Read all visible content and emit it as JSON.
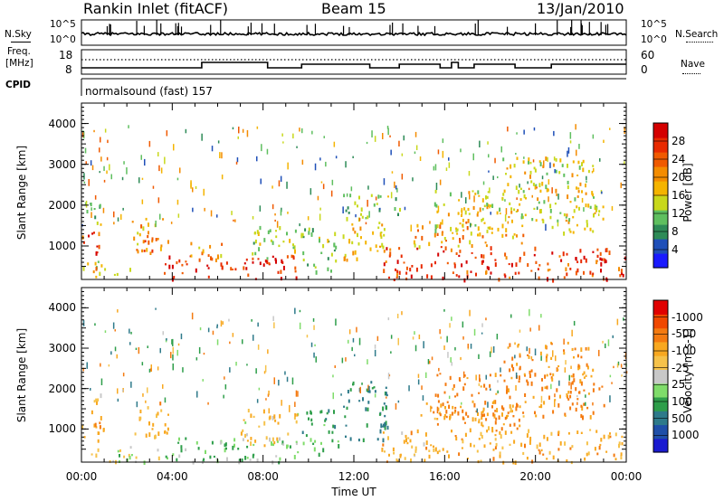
{
  "header": {
    "station": "Rankin Inlet (fitACF)",
    "beam": "Beam 15",
    "date": "13/Jan/2010"
  },
  "noise_panel": {
    "left_label": "N.Sky",
    "right_label": "N.Search",
    "y_ticks": [
      "10^5",
      "10^0"
    ]
  },
  "freq_panel": {
    "left_label_1": "Freq.",
    "left_label_2": "[MHz]",
    "left_ticks": [
      "18",
      "8"
    ],
    "right_label": "Nave",
    "right_ticks": [
      "60",
      "0"
    ]
  },
  "cpid": {
    "label": "CPID",
    "text": "normalsound (fast) 157"
  },
  "colors": {
    "power": [
      "#1a1aff",
      "#1f4fb8",
      "#2e8b57",
      "#5fbf5f",
      "#c8d81c",
      "#f4b400",
      "#f48c00",
      "#f05a00",
      "#e82a00",
      "#d40000"
    ],
    "velocity": [
      "#e00000",
      "#f04800",
      "#f47a10",
      "#f8a820",
      "#f6c24a",
      "#c8c8c8",
      "#7fdc6a",
      "#2e9e4a",
      "#2e7a8a",
      "#1f4fa8",
      "#1a1ad0"
    ]
  },
  "chart_data": [
    {
      "type": "heatmap",
      "name": "power",
      "ylabel": "Slant Range [km]",
      "xlabel": "",
      "xlim": [
        0,
        24
      ],
      "ylim": [
        180,
        4500
      ],
      "x_ticks": [
        "00:00",
        "04:00",
        "08:00",
        "12:00",
        "16:00",
        "20:00",
        "00:00"
      ],
      "y_ticks": [
        1000,
        2000,
        3000,
        4000
      ],
      "colorbar": {
        "label": "Power [dB]",
        "ticks": [
          4,
          8,
          12,
          16,
          20,
          24,
          28
        ],
        "range": [
          0,
          32
        ]
      },
      "regions": [
        {
          "t0": 0.0,
          "t1": 0.8,
          "r0": 700,
          "r1": 1500,
          "value": 26
        },
        {
          "t0": 0.0,
          "t1": 1.0,
          "r0": 300,
          "r1": 700,
          "value": 14
        },
        {
          "t0": 0.1,
          "t1": 1.1,
          "r0": 1500,
          "r1": 2100,
          "value": 12
        },
        {
          "t0": 2.2,
          "t1": 3.8,
          "r0": 800,
          "r1": 1700,
          "value": 20
        },
        {
          "t0": 2.6,
          "t1": 3.3,
          "r0": 900,
          "r1": 1400,
          "value": 27
        },
        {
          "t0": 0.5,
          "t1": 2.2,
          "r0": 250,
          "r1": 500,
          "value": 18
        },
        {
          "t0": 3.6,
          "t1": 9.5,
          "r0": 200,
          "r1": 800,
          "value": 27
        },
        {
          "t0": 4.6,
          "t1": 6.2,
          "r0": 600,
          "r1": 1100,
          "value": 20
        },
        {
          "t0": 7.4,
          "t1": 9.6,
          "r0": 700,
          "r1": 1500,
          "value": 14
        },
        {
          "t0": 9.6,
          "t1": 11.3,
          "r0": 400,
          "r1": 1500,
          "value": 12
        },
        {
          "t0": 11.5,
          "t1": 13.4,
          "r0": 600,
          "r1": 1800,
          "value": 18
        },
        {
          "t0": 11.5,
          "t1": 14.0,
          "r0": 1800,
          "r1": 2300,
          "value": 12
        },
        {
          "t0": 13.2,
          "t1": 24.0,
          "r0": 200,
          "r1": 1000,
          "value": 26
        },
        {
          "t0": 14.5,
          "t1": 19.5,
          "r0": 1000,
          "r1": 1600,
          "value": 20
        },
        {
          "t0": 15.5,
          "t1": 23.0,
          "r0": 1300,
          "r1": 2400,
          "value": 16
        },
        {
          "t0": 18.5,
          "t1": 22.5,
          "r0": 2300,
          "r1": 3200,
          "value": 16
        }
      ]
    },
    {
      "type": "heatmap",
      "name": "velocity",
      "ylabel": "Slant Range [km]",
      "xlabel": "Time UT",
      "xlim": [
        0,
        24
      ],
      "ylim": [
        180,
        4500
      ],
      "x_ticks": [
        "00:00",
        "04:00",
        "08:00",
        "12:00",
        "16:00",
        "20:00",
        "00:00"
      ],
      "y_ticks": [
        1000,
        2000,
        3000,
        4000
      ],
      "colorbar": {
        "label": "Velocity [m s-1]",
        "ticks": [
          "1000",
          "500",
          "100",
          "25",
          "-25",
          "-100",
          "-500",
          "-1000"
        ]
      },
      "regions": [
        {
          "t0": 0.0,
          "t1": 1.0,
          "r0": 700,
          "r1": 1600,
          "value": -200
        },
        {
          "t0": 0.1,
          "t1": 0.9,
          "r0": 1600,
          "r1": 2000,
          "value": -100
        },
        {
          "t0": 2.2,
          "t1": 3.8,
          "r0": 800,
          "r1": 1700,
          "value": -150
        },
        {
          "t0": 0.3,
          "t1": 3.5,
          "r0": 200,
          "r1": 600,
          "value": 0
        },
        {
          "t0": 3.6,
          "t1": 9.5,
          "r0": 200,
          "r1": 800,
          "value": 100
        },
        {
          "t0": 7.0,
          "t1": 9.6,
          "r0": 600,
          "r1": 1500,
          "value": -80
        },
        {
          "t0": 9.6,
          "t1": 11.3,
          "r0": 400,
          "r1": 1500,
          "value": 150
        },
        {
          "t0": 11.5,
          "t1": 13.5,
          "r0": 700,
          "r1": 2200,
          "value": 300
        },
        {
          "t0": 13.2,
          "t1": 24.0,
          "r0": 200,
          "r1": 1000,
          "value": -150
        },
        {
          "t0": 14.5,
          "t1": 19.5,
          "r0": 1000,
          "r1": 1700,
          "value": -200
        },
        {
          "t0": 15.5,
          "t1": 23.0,
          "r0": 1300,
          "r1": 2400,
          "value": -300
        },
        {
          "t0": 18.5,
          "t1": 22.5,
          "r0": 2300,
          "r1": 3200,
          "value": -250
        }
      ]
    }
  ]
}
